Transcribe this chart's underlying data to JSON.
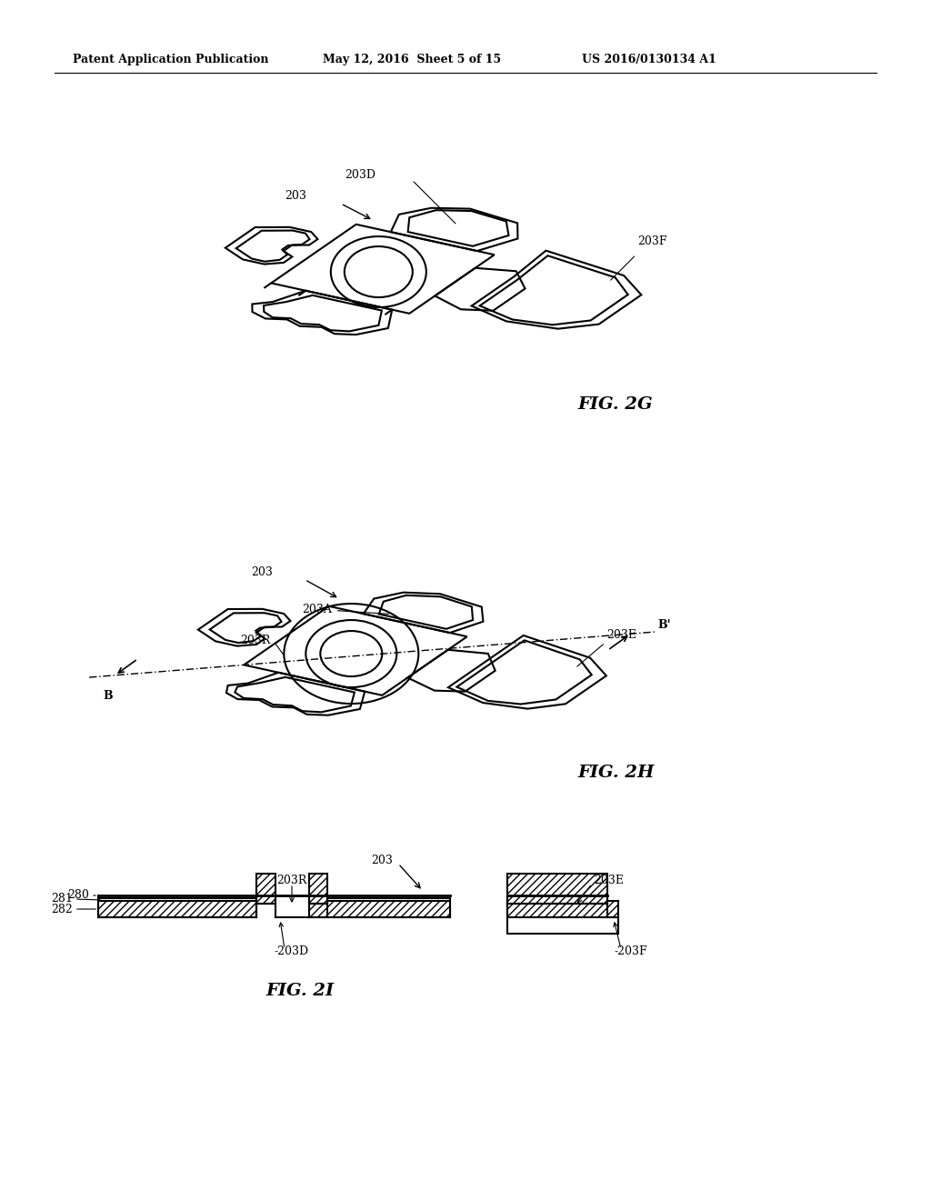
{
  "header_left": "Patent Application Publication",
  "header_mid": "May 12, 2016  Sheet 5 of 15",
  "header_right": "US 2016/0130134 A1",
  "fig2g_label": "FIG. 2G",
  "fig2h_label": "FIG. 2H",
  "fig2i_label": "FIG. 2I",
  "bg_color": "#ffffff",
  "line_color": "#000000"
}
